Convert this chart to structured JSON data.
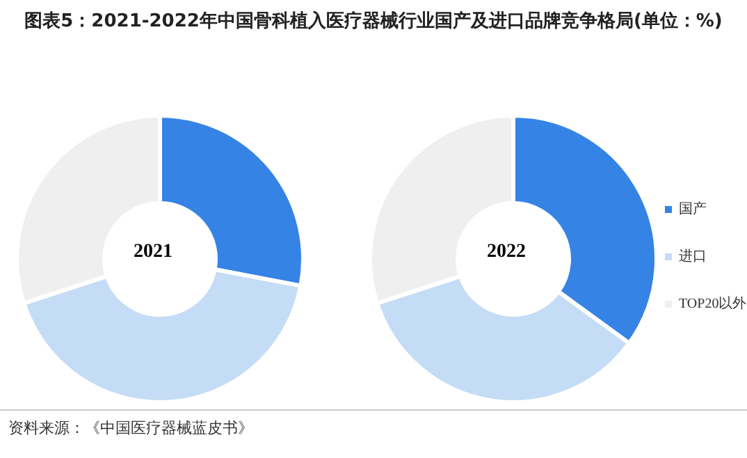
{
  "chart_data": [
    {
      "type": "donut",
      "title": "图表5：2021-2022年中国骨科植入医疗器械行业国产及进口品牌竞争格局(单位：%)",
      "subtitle": "2021",
      "categories": [
        "国产",
        "进口",
        "TOP20以外"
      ],
      "values": [
        28,
        42,
        30
      ],
      "colors": [
        "#3683e6",
        "#c5dcf6",
        "#efefef"
      ],
      "legend": "right"
    },
    {
      "type": "donut",
      "subtitle": "2022",
      "categories": [
        null,
        null,
        null
      ],
      "values": [
        35,
        35,
        30
      ],
      "colors": [
        "#3683e6",
        "#c5dcf6",
        "#efefef"
      ],
      "annotations": [
        "资料来源：《中国医疗器械蓝皮书》"
      ]
    }
  ]
}
